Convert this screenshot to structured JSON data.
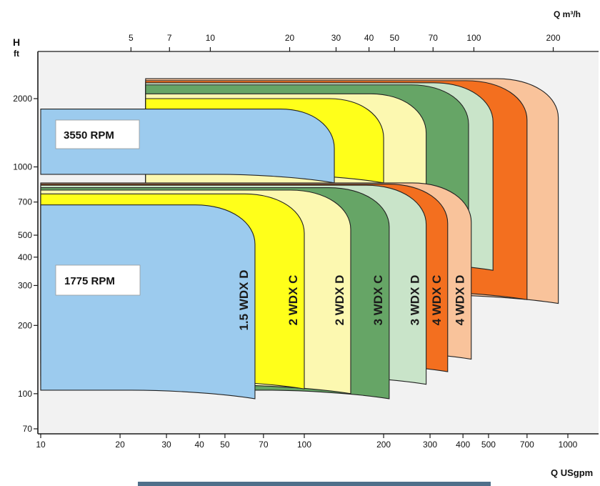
{
  "chart_data": {
    "type": "area",
    "y_axis": {
      "label_top": "H",
      "label_bottom": "ft",
      "scale": "log",
      "ticks": [
        "70",
        "100",
        "200",
        "300",
        "400",
        "500",
        "700",
        "1000",
        "2000"
      ]
    },
    "x_axis_bottom": {
      "label": "Q USgpm",
      "scale": "log",
      "ticks": [
        "10",
        "20",
        "30",
        "40",
        "50",
        "70",
        "100",
        "200",
        "300",
        "400",
        "500",
        "700",
        "1000"
      ]
    },
    "x_axis_top": {
      "label": "Q m³/h",
      "scale": "log",
      "ticks": [
        "5",
        "7",
        "10",
        "20",
        "30",
        "40",
        "50",
        "70",
        "100",
        "200"
      ]
    },
    "rpm_labels": [
      "3550 RPM",
      "1775 RPM"
    ],
    "series_1775": [
      {
        "name": "1.5 WDX D",
        "color": "#9ccbee",
        "q_max": 65,
        "h_top": 680,
        "h_bottom": 95
      },
      {
        "name": "2 WDX C",
        "color": "#ffff1a",
        "q_max": 100,
        "h_top": 760,
        "h_bottom": 105
      },
      {
        "name": "2 WDX D",
        "color": "#fcf8b0",
        "q_max": 150,
        "h_top": 790,
        "h_bottom": 100
      },
      {
        "name": "3 WDX C",
        "color": "#66a566",
        "q_max": 210,
        "h_top": 810,
        "h_bottom": 95
      },
      {
        "name": "3 WDX D",
        "color": "#c9e4c9",
        "q_max": 290,
        "h_top": 830,
        "h_bottom": 110
      },
      {
        "name": "4 WDX C",
        "color": "#f36f1f",
        "q_max": 350,
        "h_top": 840,
        "h_bottom": 125
      },
      {
        "name": "4 WDX D",
        "color": "#f9c39b",
        "q_max": 430,
        "h_top": 850,
        "h_bottom": 142
      }
    ],
    "series_3550": [
      {
        "name": "1.5 WDX D",
        "color": "#9ccbee",
        "q_max": 130,
        "h_top": 1800,
        "h_bottom": 850
      },
      {
        "name": "2 WDX C",
        "color": "#ffff1a",
        "q_max": 200,
        "h_top": 2000,
        "h_bottom": 850
      },
      {
        "name": "2 WDX D",
        "color": "#fcf8b0",
        "q_max": 290,
        "h_top": 2100,
        "h_bottom": 720
      },
      {
        "name": "3 WDX C",
        "color": "#66a566",
        "q_max": 420,
        "h_top": 2300,
        "h_bottom": 550
      },
      {
        "name": "3 WDX D",
        "color": "#c9e4c9",
        "q_max": 520,
        "h_top": 2350,
        "h_bottom": 350
      },
      {
        "name": "4 WDX C",
        "color": "#f36f1f",
        "q_max": 700,
        "h_top": 2400,
        "h_bottom": 260
      },
      {
        "name": "4 WDX D",
        "color": "#f9c39b",
        "q_max": 920,
        "h_top": 2450,
        "h_bottom": 250
      }
    ],
    "colors": {
      "plot_bg": "#f2f2f2",
      "frame": "#1a1a1a"
    }
  }
}
